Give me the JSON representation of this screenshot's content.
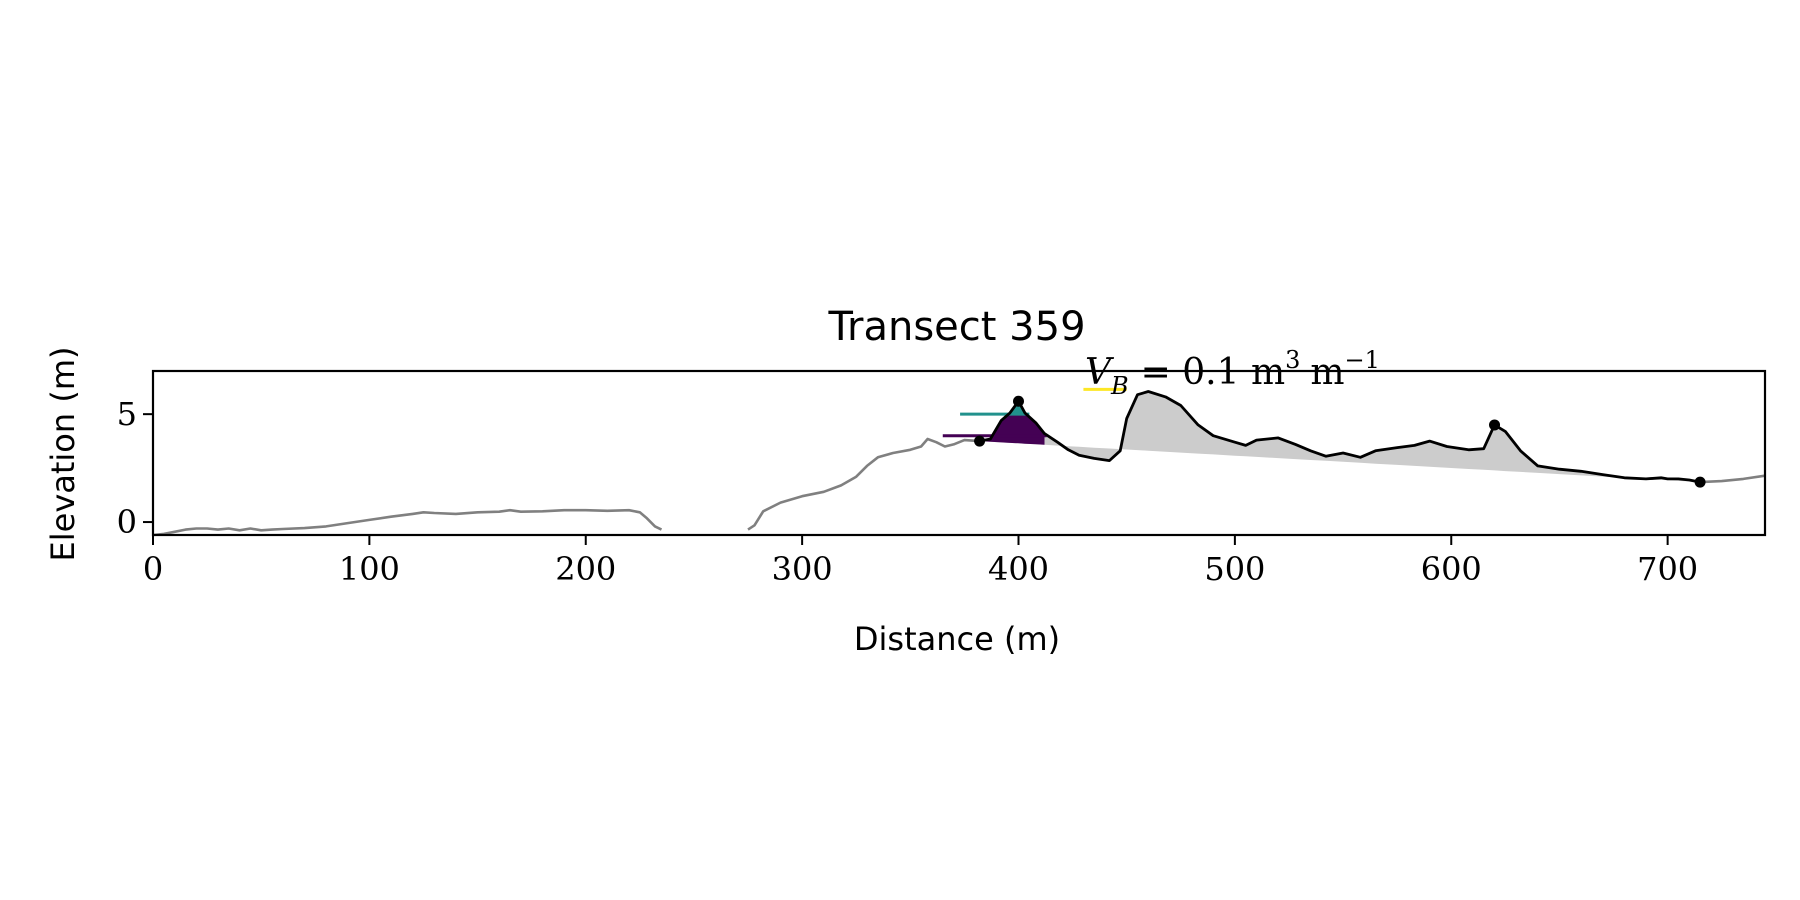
{
  "chart_data": {
    "type": "line",
    "title": "Transect 359",
    "xlabel": "Distance (m)",
    "ylabel": "Elevation (m)",
    "xlim": [
      0,
      745
    ],
    "ylim": [
      -0.6,
      7.0
    ],
    "xticks": [
      0,
      100,
      200,
      300,
      400,
      500,
      600,
      700
    ],
    "yticks": [
      0,
      5
    ],
    "grid": false,
    "legend": "none",
    "annotation": {
      "text_parts": {
        "var": "V",
        "sub": "B",
        "eq": "= 0.1 m",
        "sup1": "3",
        "unit2": "m",
        "sup2": "−1"
      },
      "x": 430,
      "y": 6.15,
      "marker_color": "#fde725",
      "marker_x": [
        430,
        450
      ]
    },
    "colors": {
      "profile": "#808080",
      "profile_selected": "#000000",
      "fill_area": "#cccccc",
      "dune_dark": "#440154",
      "dune_mid": "#3b528b",
      "dune_teal": "#21918c",
      "dune_yellow": "#fde725"
    },
    "series": [
      {
        "role": "profile-left",
        "color": "#808080",
        "points": [
          [
            0,
            -0.6
          ],
          [
            5,
            -0.55
          ],
          [
            10,
            -0.45
          ],
          [
            15,
            -0.35
          ],
          [
            20,
            -0.3
          ],
          [
            25,
            -0.3
          ],
          [
            30,
            -0.35
          ],
          [
            35,
            -0.3
          ],
          [
            40,
            -0.38
          ],
          [
            45,
            -0.3
          ],
          [
            50,
            -0.38
          ],
          [
            55,
            -0.35
          ],
          [
            60,
            -0.32
          ],
          [
            70,
            -0.28
          ],
          [
            80,
            -0.2
          ],
          [
            90,
            -0.05
          ],
          [
            100,
            0.1
          ],
          [
            110,
            0.25
          ],
          [
            120,
            0.38
          ],
          [
            125,
            0.45
          ],
          [
            130,
            0.42
          ],
          [
            140,
            0.38
          ],
          [
            150,
            0.45
          ],
          [
            160,
            0.48
          ],
          [
            165,
            0.55
          ],
          [
            170,
            0.48
          ],
          [
            180,
            0.5
          ],
          [
            190,
            0.55
          ],
          [
            200,
            0.55
          ],
          [
            210,
            0.52
          ],
          [
            220,
            0.55
          ],
          [
            225,
            0.45
          ],
          [
            228,
            0.2
          ],
          [
            232,
            -0.2
          ],
          [
            235,
            -0.35
          ]
        ]
      },
      {
        "role": "profile-right-gray",
        "color": "#808080",
        "points": [
          [
            275,
            -0.35
          ],
          [
            278,
            -0.15
          ],
          [
            282,
            0.5
          ],
          [
            290,
            0.9
          ],
          [
            300,
            1.2
          ],
          [
            310,
            1.4
          ],
          [
            318,
            1.7
          ],
          [
            325,
            2.1
          ],
          [
            330,
            2.6
          ],
          [
            335,
            3.0
          ],
          [
            342,
            3.2
          ],
          [
            350,
            3.35
          ],
          [
            355,
            3.5
          ],
          [
            358,
            3.85
          ],
          [
            362,
            3.7
          ],
          [
            366,
            3.5
          ],
          [
            370,
            3.6
          ],
          [
            375,
            3.8
          ],
          [
            382,
            3.75
          ]
        ]
      },
      {
        "role": "profile-selected",
        "color": "#000000",
        "points": [
          [
            382,
            3.75
          ],
          [
            387,
            3.85
          ],
          [
            392,
            4.7
          ],
          [
            396,
            5.05
          ],
          [
            400,
            5.6
          ],
          [
            403,
            5.05
          ],
          [
            408,
            4.6
          ],
          [
            412,
            4.1
          ],
          [
            418,
            3.7
          ],
          [
            423,
            3.35
          ],
          [
            428,
            3.1
          ],
          [
            435,
            2.95
          ],
          [
            442,
            2.85
          ],
          [
            447,
            3.3
          ],
          [
            450,
            4.8
          ],
          [
            455,
            5.9
          ],
          [
            460,
            6.05
          ],
          [
            468,
            5.8
          ],
          [
            475,
            5.4
          ],
          [
            483,
            4.5
          ],
          [
            490,
            4.0
          ],
          [
            500,
            3.7
          ],
          [
            505,
            3.55
          ],
          [
            510,
            3.8
          ],
          [
            520,
            3.9
          ],
          [
            528,
            3.6
          ],
          [
            535,
            3.3
          ],
          [
            542,
            3.05
          ],
          [
            550,
            3.2
          ],
          [
            558,
            3.0
          ],
          [
            565,
            3.3
          ],
          [
            575,
            3.45
          ],
          [
            583,
            3.55
          ],
          [
            590,
            3.75
          ],
          [
            598,
            3.5
          ],
          [
            608,
            3.35
          ],
          [
            615,
            3.4
          ],
          [
            620,
            4.5
          ],
          [
            625,
            4.2
          ],
          [
            632,
            3.3
          ],
          [
            640,
            2.6
          ],
          [
            650,
            2.45
          ],
          [
            660,
            2.35
          ],
          [
            670,
            2.2
          ],
          [
            680,
            2.05
          ],
          [
            690,
            2.0
          ],
          [
            697,
            2.05
          ],
          [
            700,
            2.0
          ],
          [
            705,
            2.0
          ],
          [
            710,
            1.95
          ],
          [
            715,
            1.85
          ]
        ]
      },
      {
        "role": "profile-tail-gray",
        "color": "#808080",
        "points": [
          [
            715,
            1.85
          ],
          [
            725,
            1.9
          ],
          [
            735,
            2.0
          ],
          [
            745,
            2.15
          ]
        ]
      },
      {
        "role": "dune-top",
        "color": "#3b528b",
        "points": [
          [
            382,
            3.75
          ],
          [
            387,
            3.85
          ],
          [
            392,
            4.7
          ],
          [
            396,
            5.05
          ],
          [
            400,
            5.6
          ],
          [
            403,
            5.05
          ],
          [
            408,
            4.6
          ],
          [
            412,
            4.1
          ]
        ]
      }
    ],
    "baseline": [
      [
        382,
        3.75
      ],
      [
        715,
        1.85
      ]
    ],
    "dune_levels": [
      {
        "color": "#21918c",
        "x": [
          373,
          405
        ],
        "y": 5.0
      },
      {
        "color": "#440154",
        "x": [
          365,
          413
        ],
        "y": 4.0
      }
    ],
    "key_points": [
      {
        "x": 382,
        "y": 3.75
      },
      {
        "x": 400,
        "y": 5.6
      },
      {
        "x": 620,
        "y": 4.5
      },
      {
        "x": 715,
        "y": 1.85
      }
    ]
  }
}
